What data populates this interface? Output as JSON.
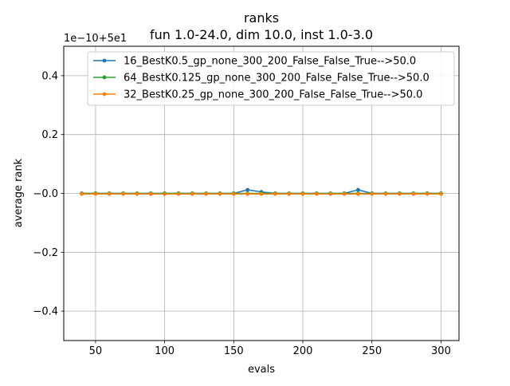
{
  "chart_data": {
    "type": "line",
    "title": "ranks",
    "subtitle": "fun 1.0-24.0, dim 10.0, inst 1.0-3.0",
    "xlabel": "evals",
    "ylabel": "average rank",
    "offset_label": "1e−10+5e1",
    "xlim": [
      27,
      313
    ],
    "ylim": [
      -0.5,
      0.5
    ],
    "xticks": [
      50,
      100,
      150,
      200,
      250,
      300
    ],
    "yticks": [
      -0.4,
      -0.2,
      0.0,
      0.2,
      0.4
    ],
    "ytick_labels": [
      "−0.4",
      "−0.2",
      "−0.0",
      "0.2",
      "0.4"
    ],
    "grid": true,
    "legend_position": "top-right",
    "x": [
      40,
      50,
      60,
      70,
      80,
      90,
      100,
      110,
      120,
      130,
      140,
      150,
      160,
      170,
      180,
      190,
      200,
      210,
      220,
      230,
      240,
      250,
      260,
      270,
      280,
      290,
      300
    ],
    "series": [
      {
        "name": "16_BestK0.5_gp_none_300_200_False_False_True-->50.0",
        "color": "#1f77b4",
        "values": [
          0.0,
          0.0,
          0.0,
          0.0,
          0.0,
          0.0,
          0.0,
          0.0,
          0.0,
          0.0,
          0.0,
          0.0,
          0.012,
          0.005,
          0.0,
          0.0,
          0.0,
          0.0,
          0.0,
          0.0,
          0.012,
          0.0,
          0.0,
          0.0,
          0.0,
          0.0,
          0.0
        ]
      },
      {
        "name": "64_BestK0.125_gp_none_300_200_False_False_True-->50.0",
        "color": "#2ca02c",
        "values": [
          0.0,
          0.0,
          0.0,
          0.0,
          0.0,
          0.0,
          0.0,
          0.0,
          0.0,
          0.0,
          0.0,
          0.0,
          0.0,
          0.0,
          0.0,
          0.0,
          0.0,
          0.0,
          0.0,
          0.0,
          0.0,
          0.0,
          0.0,
          0.0,
          0.0,
          0.0,
          0.0
        ]
      },
      {
        "name": "32_BestK0.25_gp_none_300_200_False_False_True-->50.0",
        "color": "#ff7f0e",
        "values": [
          -0.002,
          -0.002,
          -0.002,
          -0.002,
          -0.002,
          -0.002,
          -0.002,
          -0.002,
          -0.002,
          -0.002,
          -0.002,
          -0.002,
          -0.002,
          -0.002,
          -0.002,
          -0.002,
          -0.002,
          -0.002,
          -0.002,
          -0.002,
          -0.002,
          -0.002,
          -0.002,
          -0.002,
          -0.002,
          -0.002,
          -0.002
        ]
      }
    ]
  }
}
